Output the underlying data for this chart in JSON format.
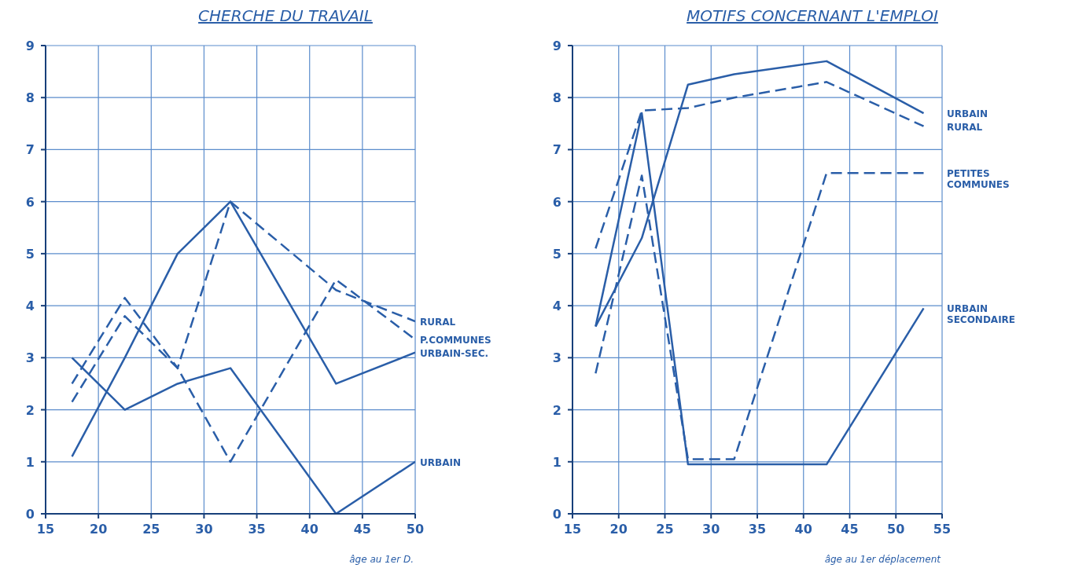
{
  "chart_data": [
    {
      "type": "line",
      "title": "CHERCHE DU TRAVAIL",
      "xlabel": "âge au 1er D.",
      "x": [
        17.5,
        22.5,
        27.5,
        32.5,
        42.5,
        50
      ],
      "xlim": [
        15,
        50
      ],
      "xticks": [
        15,
        20,
        25,
        30,
        35,
        40,
        45,
        50
      ],
      "ylim": [
        0,
        9
      ],
      "yticks": [
        0,
        1,
        2,
        3,
        4,
        5,
        6,
        7,
        8,
        9
      ],
      "grid": true,
      "legend": false,
      "marker": "none",
      "series": [
        {
          "name": "RURAL",
          "color": "#2a5ea8",
          "line_style": "dashed",
          "values": [
            2.5,
            4.15,
            2.8,
            6.0,
            4.3,
            3.7
          ]
        },
        {
          "name": "P.COMMUNES",
          "color": "#2a5ea8",
          "line_style": "dashed",
          "values": [
            2.15,
            3.8,
            2.8,
            1.0,
            4.5,
            3.35
          ]
        },
        {
          "name": "URBAIN-SEC.",
          "color": "#2a5ea8",
          "line_style": "solid",
          "values": [
            1.1,
            3.0,
            5.0,
            6.0,
            2.5,
            3.1
          ]
        },
        {
          "name": "URBAIN",
          "color": "#2a5ea8",
          "line_style": "solid",
          "values": [
            3.0,
            2.0,
            2.5,
            2.8,
            0.0,
            1.0
          ]
        }
      ]
    },
    {
      "type": "line",
      "title": "MOTIFS CONCERNANT L'EMPLOI",
      "xlabel": "âge au 1er déplacement",
      "x": [
        17.5,
        22.5,
        27.5,
        32.5,
        42.5,
        53
      ],
      "xlim": [
        15,
        55
      ],
      "xticks": [
        15,
        20,
        25,
        30,
        35,
        40,
        45,
        50,
        55
      ],
      "ylim": [
        0,
        9
      ],
      "yticks": [
        0,
        1,
        2,
        3,
        4,
        5,
        6,
        7,
        8,
        9
      ],
      "grid": true,
      "legend": false,
      "marker": "none",
      "series": [
        {
          "name": "URBAIN",
          "color": "#2a5ea8",
          "line_style": "solid",
          "values": [
            3.6,
            5.3,
            8.25,
            8.45,
            8.7,
            7.7
          ]
        },
        {
          "name": "RURAL",
          "color": "#2a5ea8",
          "line_style": "dashed",
          "values": [
            5.1,
            7.75,
            7.8,
            8.0,
            8.3,
            7.45
          ]
        },
        {
          "name": "PETITES COMMUNES",
          "color": "#2a5ea8",
          "line_style": "dashed",
          "values": [
            2.7,
            6.5,
            1.05,
            1.05,
            6.55,
            6.55
          ]
        },
        {
          "name": "URBAIN SECONDAIRE",
          "color": "#2a5ea8",
          "line_style": "solid",
          "values": [
            3.6,
            7.7,
            0.95,
            0.95,
            0.95,
            3.95
          ]
        }
      ]
    }
  ]
}
